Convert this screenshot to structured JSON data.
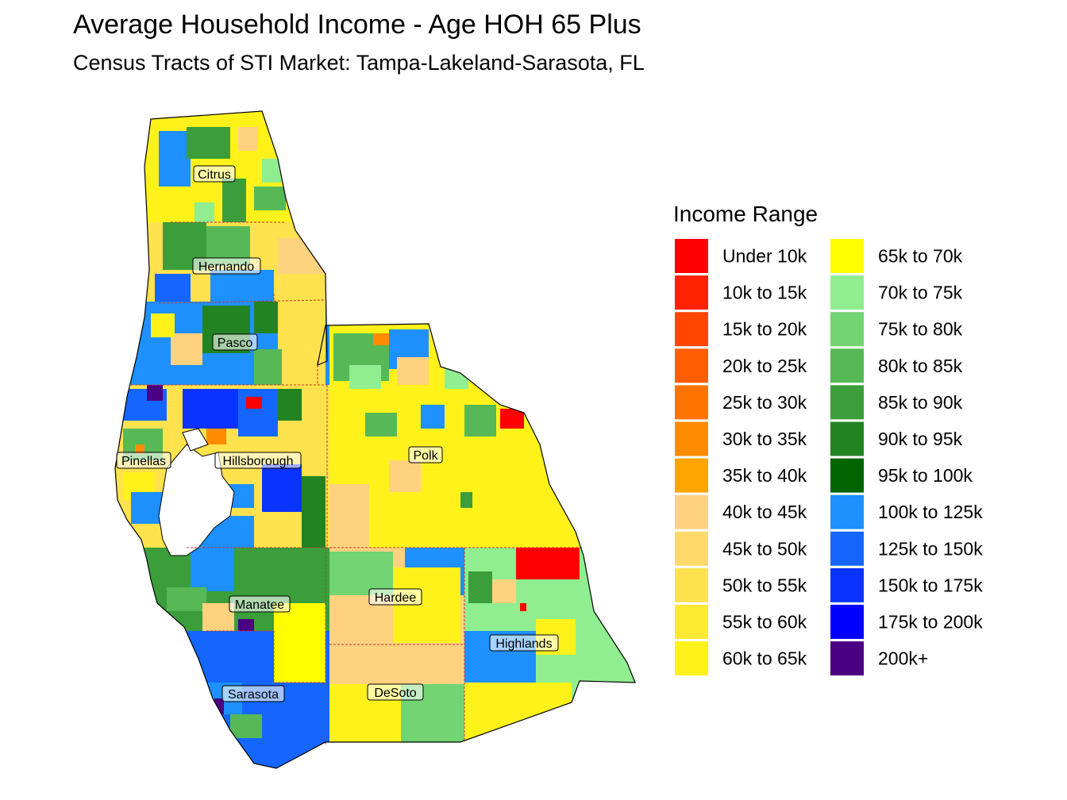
{
  "title": "Average Household Income - Age HOH 65 Plus",
  "subtitle": "Census Tracts of STI Market: Tampa-Lakeland-Sarasota, FL",
  "legend": {
    "title": "Income Range",
    "items": [
      {
        "label": "Under 10k",
        "color": "#FF0000"
      },
      {
        "label": "10k to 15k",
        "color": "#FF2200"
      },
      {
        "label": "15k to 20k",
        "color": "#FF4500"
      },
      {
        "label": "20k to 25k",
        "color": "#FF5E00"
      },
      {
        "label": "25k to 30k",
        "color": "#FF7400"
      },
      {
        "label": "30k to 35k",
        "color": "#FF8C00"
      },
      {
        "label": "35k to 40k",
        "color": "#FFA500"
      },
      {
        "label": "40k to 45k",
        "color": "#FFD27F"
      },
      {
        "label": "45k to 50k",
        "color": "#FFDA6A"
      },
      {
        "label": "50k to 55k",
        "color": "#FFE24D"
      },
      {
        "label": "55k to 60k",
        "color": "#FFEA33"
      },
      {
        "label": "60k to 65k",
        "color": "#FFF21A"
      },
      {
        "label": "65k to 70k",
        "color": "#FFFF00"
      },
      {
        "label": "70k to 75k",
        "color": "#90EE90"
      },
      {
        "label": "75k to 80k",
        "color": "#72D472"
      },
      {
        "label": "80k to 85k",
        "color": "#56B956"
      },
      {
        "label": "85k to 90k",
        "color": "#3B9E3B"
      },
      {
        "label": "90k to 95k",
        "color": "#228322"
      },
      {
        "label": "95k to 100k",
        "color": "#006400"
      },
      {
        "label": "100k to 125k",
        "color": "#1E90FF"
      },
      {
        "label": "125k to 150k",
        "color": "#1466FF"
      },
      {
        "label": "150k to 175k",
        "color": "#0A33FF"
      },
      {
        "label": "175k to 200k",
        "color": "#0000FF"
      },
      {
        "label": "200k+",
        "color": "#4B0082"
      }
    ]
  },
  "counties": [
    {
      "name": "Citrus",
      "dominant_range": "65k to 70k"
    },
    {
      "name": "Hernando",
      "dominant_range": "65k to 70k"
    },
    {
      "name": "Pasco",
      "dominant_range": "100k to 125k"
    },
    {
      "name": "Pinellas",
      "dominant_range": "100k to 125k"
    },
    {
      "name": "Hillsborough",
      "dominant_range": "100k to 125k"
    },
    {
      "name": "Polk",
      "dominant_range": "65k to 70k"
    },
    {
      "name": "Manatee",
      "dominant_range": "85k to 90k"
    },
    {
      "name": "Hardee",
      "dominant_range": "40k to 45k"
    },
    {
      "name": "Highlands",
      "dominant_range": "70k to 75k"
    },
    {
      "name": "Sarasota",
      "dominant_range": "125k to 150k"
    },
    {
      "name": "DeSoto",
      "dominant_range": "65k to 70k"
    }
  ],
  "colors": {
    "water": "#FFFFFF",
    "outline": "#000000",
    "county_border": "#CC3333"
  }
}
